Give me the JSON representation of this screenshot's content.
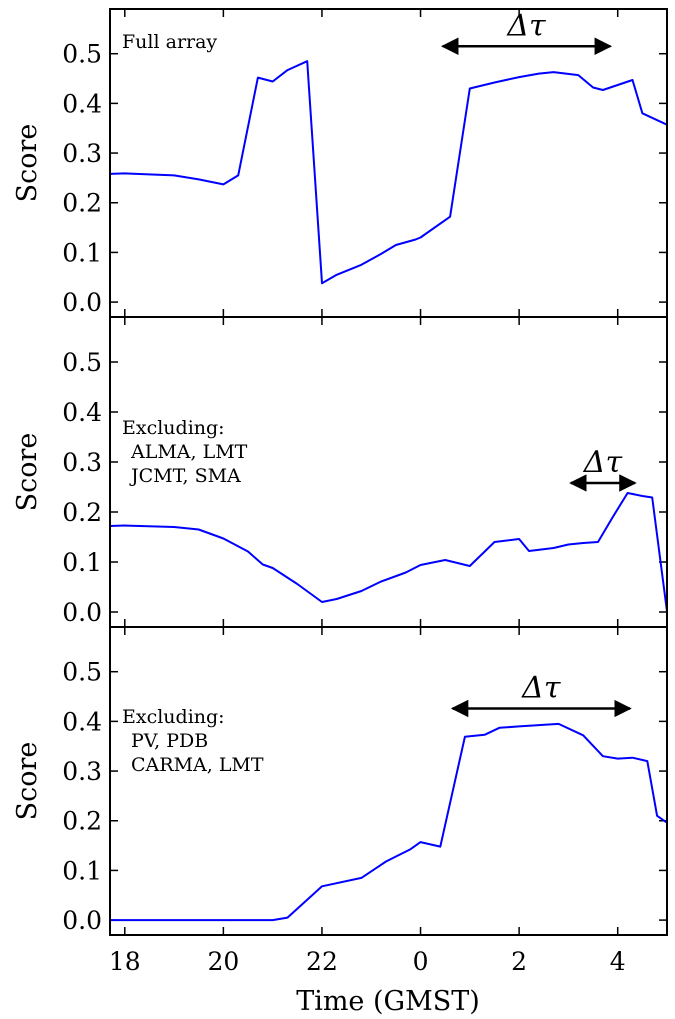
{
  "chart_data": {
    "type": "line",
    "xlabel": "Time (GMST)",
    "x_ticks": [
      "18",
      "20",
      "22",
      "0",
      "2",
      "4"
    ],
    "x_tick_values": [
      18,
      20,
      22,
      24,
      26,
      28
    ],
    "xlim": [
      17.7,
      29.0
    ],
    "ylim": [
      -0.03,
      0.59
    ],
    "y_ticks": [
      "0.0",
      "0.1",
      "0.2",
      "0.3",
      "0.4",
      "0.5"
    ],
    "y_tick_values": [
      0.0,
      0.1,
      0.2,
      0.3,
      0.4,
      0.5
    ],
    "line_color": "#0000ff",
    "panels": [
      {
        "ylabel": "Score",
        "note_lines": [
          "Full array"
        ],
        "delta_label": "Δτ",
        "delta_range": [
          24.45,
          27.85
        ],
        "delta_y": 0.515,
        "series": {
          "x": [
            17.7,
            18.0,
            19.0,
            19.5,
            20.0,
            20.3,
            20.7,
            21.0,
            21.3,
            21.7,
            22.0,
            22.3,
            22.8,
            23.2,
            23.5,
            23.9,
            24.0,
            24.6,
            25.0,
            25.5,
            26.0,
            26.4,
            26.7,
            27.2,
            27.5,
            27.7,
            28.0,
            28.3,
            28.5,
            29.0
          ],
          "y": [
            0.258,
            0.259,
            0.255,
            0.247,
            0.237,
            0.255,
            0.452,
            0.444,
            0.467,
            0.485,
            0.038,
            0.055,
            0.075,
            0.097,
            0.115,
            0.126,
            0.13,
            0.172,
            0.43,
            0.442,
            0.453,
            0.46,
            0.463,
            0.457,
            0.432,
            0.427,
            0.437,
            0.447,
            0.38,
            0.357
          ]
        }
      },
      {
        "ylabel": "Score",
        "note_lines": [
          "Excluding:",
          "ALMA, LMT",
          "JCMT, SMA"
        ],
        "delta_label": "Δτ",
        "delta_range": [
          27.05,
          28.35
        ],
        "delta_y": 0.258,
        "series": {
          "x": [
            17.7,
            18.0,
            19.0,
            19.5,
            20.0,
            20.5,
            20.8,
            21.0,
            21.5,
            22.0,
            22.3,
            22.8,
            23.2,
            23.7,
            24.0,
            24.5,
            25.0,
            25.5,
            26.0,
            26.2,
            26.7,
            27.0,
            27.3,
            27.6,
            27.9,
            28.2,
            28.5,
            28.7,
            29.0
          ],
          "y": [
            0.172,
            0.173,
            0.17,
            0.165,
            0.147,
            0.121,
            0.095,
            0.088,
            0.056,
            0.02,
            0.026,
            0.042,
            0.061,
            0.079,
            0.094,
            0.104,
            0.092,
            0.14,
            0.146,
            0.122,
            0.128,
            0.135,
            0.138,
            0.14,
            0.19,
            0.238,
            0.232,
            0.229,
            0.001
          ]
        }
      },
      {
        "ylabel": "Score",
        "note_lines": [
          "Excluding:",
          "PV, PDB",
          "CARMA, LMT"
        ],
        "delta_label": "Δτ",
        "delta_range": [
          24.65,
          28.25
        ],
        "delta_y": 0.426,
        "series": {
          "x": [
            17.7,
            18.0,
            19.0,
            20.0,
            21.0,
            21.3,
            22.0,
            22.8,
            23.3,
            23.8,
            24.0,
            24.4,
            24.9,
            25.3,
            25.6,
            26.0,
            26.8,
            27.3,
            27.7,
            28.0,
            28.3,
            28.6,
            28.8,
            29.0
          ],
          "y": [
            0.0,
            0.0,
            0.0,
            0.0,
            0.0,
            0.005,
            0.068,
            0.085,
            0.118,
            0.143,
            0.157,
            0.148,
            0.369,
            0.373,
            0.387,
            0.39,
            0.395,
            0.372,
            0.33,
            0.325,
            0.327,
            0.32,
            0.21,
            0.196
          ]
        }
      }
    ]
  }
}
